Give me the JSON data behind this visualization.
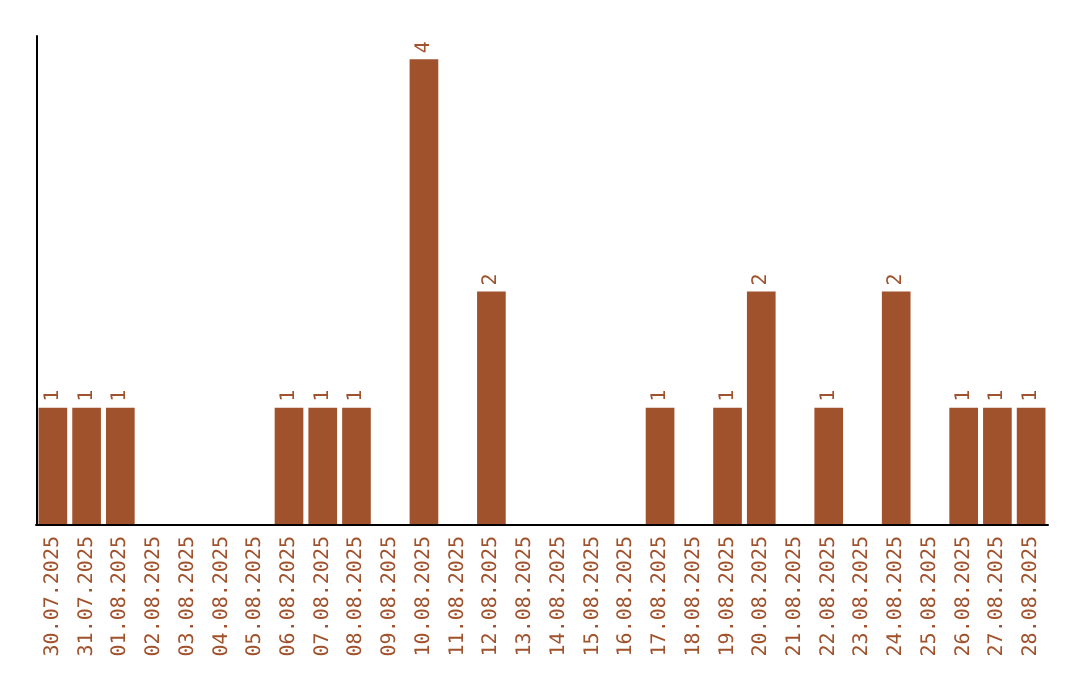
{
  "chart_data": {
    "type": "bar",
    "categories": [
      "30.07.2025",
      "31.07.2025",
      "01.08.2025",
      "02.08.2025",
      "03.08.2025",
      "04.08.2025",
      "05.08.2025",
      "06.08.2025",
      "07.08.2025",
      "08.08.2025",
      "09.08.2025",
      "10.08.2025",
      "11.08.2025",
      "12.08.2025",
      "13.08.2025",
      "14.08.2025",
      "15.08.2025",
      "16.08.2025",
      "17.08.2025",
      "18.08.2025",
      "19.08.2025",
      "20.08.2025",
      "21.08.2025",
      "22.08.2025",
      "23.08.2025",
      "24.08.2025",
      "25.08.2025",
      "26.08.2025",
      "27.08.2025",
      "28.08.2025"
    ],
    "values": [
      1,
      1,
      1,
      0,
      0,
      0,
      0,
      1,
      1,
      1,
      0,
      4,
      0,
      2,
      0,
      0,
      0,
      0,
      1,
      0,
      1,
      2,
      0,
      1,
      0,
      2,
      0,
      1,
      1,
      1
    ],
    "value_labels": [
      "1",
      "1",
      "1",
      null,
      null,
      null,
      null,
      "1",
      "1",
      "1",
      null,
      "4",
      null,
      "2",
      null,
      null,
      null,
      null,
      "1",
      null,
      "1",
      "2",
      null,
      "1",
      null,
      "2",
      null,
      "1",
      "1",
      "1"
    ],
    "color": "#a0522d",
    "ylim": [
      0,
      4.2
    ],
    "tick_labels": "x",
    "grid": false
  }
}
